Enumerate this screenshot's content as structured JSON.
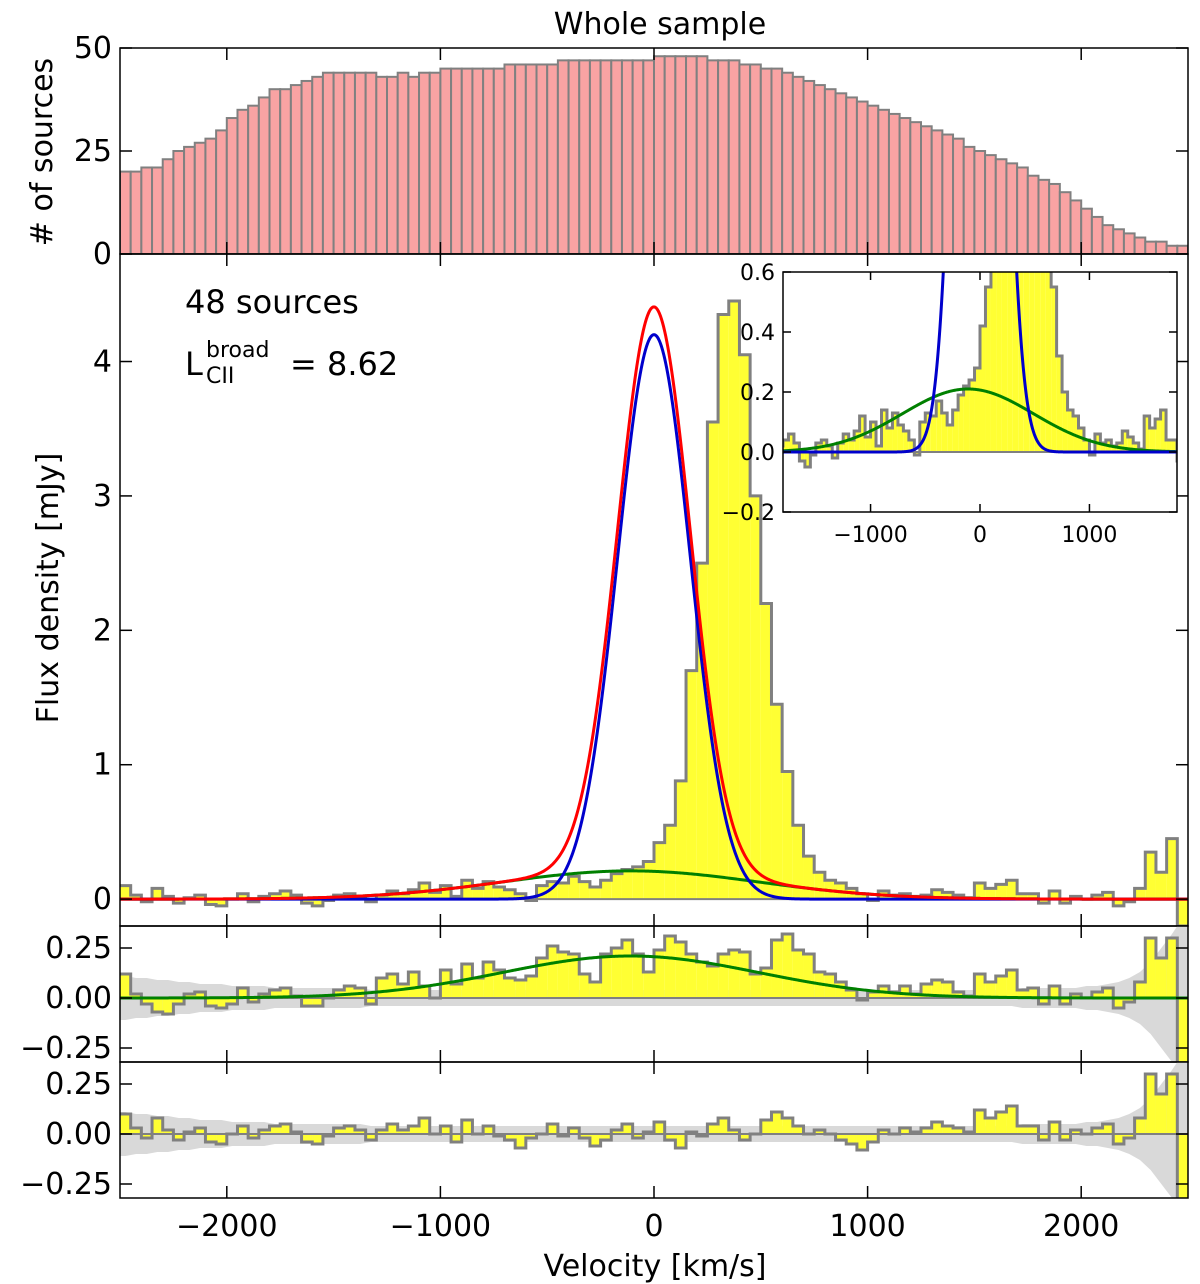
{
  "chart_data": {
    "type": "multi-panel spectrum (histogram + step spectra)",
    "title": "Whole sample",
    "xlabel": "Velocity [km/s]",
    "xlim": [
      -2500,
      2500
    ],
    "xticks": [
      -2000,
      -1000,
      0,
      1000,
      2000
    ],
    "xtick_labels": [
      "−2000",
      "−1000",
      "0",
      "1000",
      "2000"
    ],
    "colors": {
      "histogram": "#f9a3a3",
      "step": "#808080",
      "fill": "#ffff33",
      "band": "#d9d9d9",
      "total_fit": "#ff0000",
      "narrow_fit": "#0000cc",
      "broad_fit": "#008000"
    },
    "panels": {
      "histogram": {
        "ylabel": "# of sources",
        "ylim": [
          0,
          50
        ],
        "yticks": [
          0,
          25,
          50
        ],
        "ytick_labels": [
          "0",
          "25",
          "50"
        ],
        "bin_width_kms": 50,
        "bin_start_kms": -2500,
        "counts": [
          20,
          20,
          21,
          21,
          23,
          25,
          26,
          27,
          28,
          30,
          33,
          35,
          36,
          38,
          40,
          40,
          41,
          42,
          43,
          44,
          44,
          44,
          44,
          44,
          43,
          43,
          44,
          43,
          44,
          44,
          45,
          45,
          45,
          45,
          45,
          45,
          46,
          46,
          46,
          46,
          46,
          47,
          47,
          47,
          47,
          47,
          47,
          47,
          47,
          47,
          48,
          48,
          48,
          48,
          48,
          47,
          47,
          47,
          46,
          46,
          45,
          45,
          44,
          43,
          42,
          41,
          40,
          39,
          38,
          37,
          36,
          35,
          34,
          33,
          32,
          31,
          30,
          29,
          28,
          26,
          25,
          24,
          23,
          22,
          21,
          19,
          18,
          17,
          15,
          13,
          11,
          9,
          7,
          6,
          5,
          4,
          3,
          3,
          2,
          2
        ]
      },
      "spectrum": {
        "ylabel": "Flux density [mJy]",
        "ylim": [
          -0.2,
          4.8
        ],
        "yticks": [
          0,
          1,
          2,
          3,
          4
        ],
        "ytick_labels": [
          "0",
          "1",
          "2",
          "3",
          "4"
        ],
        "annotation_sources": "48  sources",
        "annotation_lum_main": "L",
        "annotation_lum_sup": "broad",
        "annotation_lum_sub": "CII",
        "annotation_lum_value": "=  8.62",
        "bin_width_kms": 50,
        "bin_start_kms": -2500,
        "flux": [
          0.1,
          0.03,
          -0.02,
          0.08,
          0.02,
          -0.03,
          0.01,
          0.03,
          -0.04,
          -0.05,
          0.0,
          0.04,
          -0.02,
          0.02,
          0.04,
          0.06,
          0.03,
          -0.03,
          -0.05,
          -0.01,
          0.03,
          0.04,
          0.02,
          -0.02,
          0.03,
          0.06,
          0.04,
          0.07,
          0.12,
          0.05,
          0.1,
          0.02,
          0.14,
          0.08,
          0.13,
          0.09,
          0.07,
          0.04,
          -0.01,
          0.1,
          0.13,
          0.12,
          0.17,
          0.13,
          0.09,
          0.14,
          0.19,
          0.22,
          0.24,
          0.28,
          0.42,
          0.55,
          0.88,
          1.7,
          2.5,
          3.55,
          4.35,
          4.45,
          4.05,
          3.0,
          2.2,
          1.45,
          0.95,
          0.55,
          0.32,
          0.2,
          0.14,
          0.12,
          0.08,
          0.04,
          -0.01,
          0.06,
          0.03,
          0.04,
          0.02,
          0.03,
          0.07,
          0.05,
          0.03,
          0.01,
          0.12,
          0.08,
          0.11,
          0.14,
          0.04,
          0.04,
          -0.03,
          0.06,
          -0.03,
          0.02,
          0.0,
          0.03,
          0.05,
          -0.05,
          -0.02,
          0.08,
          0.35,
          0.2,
          0.45,
          -0.2
        ],
        "fit": {
          "narrow": {
            "amp": 4.2,
            "center": 0,
            "sigma": 170
          },
          "broad": {
            "amp": 0.21,
            "center": -110,
            "sigma": 600
          }
        }
      },
      "inset": {
        "xlim": [
          -1800,
          1800
        ],
        "ylim": [
          -0.2,
          0.6
        ],
        "xticks": [
          -1000,
          0,
          1000
        ],
        "xtick_labels": [
          "−1000",
          "0",
          "1000"
        ],
        "yticks": [
          -0.2,
          0.0,
          0.2,
          0.4,
          0.6
        ],
        "ytick_labels": [
          "−0.2",
          "0.0",
          "0.2",
          "0.4",
          "0.6"
        ]
      },
      "residual_broad": {
        "ylim": [
          -0.32,
          0.36
        ],
        "yticks": [
          -0.25,
          0.0,
          0.25
        ],
        "ytick_labels": [
          "−0.25",
          "0.00",
          "0.25"
        ],
        "values": [
          0.12,
          0.02,
          -0.03,
          -0.07,
          -0.08,
          -0.03,
          0.02,
          0.03,
          -0.04,
          -0.05,
          -0.03,
          0.05,
          -0.02,
          0.02,
          0.04,
          0.05,
          0.01,
          -0.04,
          -0.04,
          0.0,
          0.04,
          0.06,
          0.05,
          -0.03,
          0.1,
          0.12,
          0.07,
          0.13,
          0.06,
          0.0,
          0.14,
          0.07,
          0.17,
          0.1,
          0.18,
          0.14,
          0.1,
          0.09,
          0.11,
          0.2,
          0.26,
          0.23,
          0.22,
          0.12,
          0.08,
          0.22,
          0.25,
          0.29,
          0.22,
          0.13,
          0.24,
          0.31,
          0.28,
          0.22,
          0.18,
          0.16,
          0.22,
          0.24,
          0.23,
          0.12,
          0.15,
          0.29,
          0.32,
          0.24,
          0.22,
          0.13,
          0.12,
          0.08,
          0.04,
          -0.01,
          0.03,
          0.06,
          0.03,
          0.06,
          0.02,
          0.07,
          0.09,
          0.08,
          0.03,
          0.01,
          0.12,
          0.08,
          0.11,
          0.14,
          0.04,
          0.05,
          -0.03,
          0.06,
          -0.03,
          0.02,
          0.0,
          0.03,
          0.05,
          -0.05,
          -0.02,
          0.08,
          0.3,
          0.2,
          0.3,
          -0.35
        ],
        "noise": [
          0.11,
          0.1,
          0.1,
          0.09,
          0.09,
          0.08,
          0.08,
          0.07,
          0.07,
          0.07,
          0.06,
          0.06,
          0.06,
          0.06,
          0.05,
          0.05,
          0.05,
          0.05,
          0.05,
          0.05,
          0.05,
          0.05,
          0.05,
          0.04,
          0.04,
          0.04,
          0.04,
          0.04,
          0.04,
          0.04,
          0.04,
          0.04,
          0.04,
          0.04,
          0.04,
          0.04,
          0.04,
          0.04,
          0.04,
          0.04,
          0.04,
          0.04,
          0.04,
          0.04,
          0.04,
          0.04,
          0.04,
          0.04,
          0.04,
          0.04,
          0.04,
          0.04,
          0.04,
          0.04,
          0.04,
          0.04,
          0.04,
          0.04,
          0.04,
          0.04,
          0.04,
          0.04,
          0.04,
          0.04,
          0.04,
          0.04,
          0.04,
          0.04,
          0.04,
          0.04,
          0.04,
          0.04,
          0.04,
          0.04,
          0.04,
          0.04,
          0.04,
          0.04,
          0.04,
          0.04,
          0.04,
          0.04,
          0.04,
          0.04,
          0.05,
          0.05,
          0.05,
          0.05,
          0.05,
          0.05,
          0.06,
          0.06,
          0.07,
          0.08,
          0.1,
          0.13,
          0.18,
          0.25,
          0.32,
          0.4
        ]
      },
      "residual_total": {
        "ylim": [
          -0.32,
          0.36
        ],
        "yticks": [
          -0.25,
          0.0,
          0.25
        ],
        "ytick_labels": [
          "−0.25",
          "0.00",
          "0.25"
        ],
        "values": [
          0.1,
          0.03,
          -0.02,
          0.08,
          0.02,
          -0.03,
          0.01,
          0.03,
          -0.04,
          -0.05,
          0.0,
          0.04,
          -0.02,
          0.02,
          0.04,
          0.05,
          0.01,
          -0.04,
          -0.05,
          -0.01,
          0.03,
          0.04,
          0.02,
          -0.03,
          0.02,
          0.05,
          0.02,
          0.04,
          0.08,
          0.0,
          0.04,
          -0.04,
          0.07,
          0.0,
          0.04,
          -0.01,
          -0.03,
          -0.07,
          -0.02,
          0.0,
          0.05,
          -0.01,
          0.03,
          -0.02,
          -0.06,
          -0.03,
          0.02,
          0.05,
          -0.02,
          0.01,
          0.06,
          -0.03,
          -0.07,
          0.01,
          -0.01,
          0.05,
          0.08,
          0.02,
          -0.03,
          0.0,
          0.07,
          0.11,
          0.08,
          0.04,
          0.0,
          0.02,
          0.0,
          -0.03,
          -0.05,
          -0.08,
          -0.04,
          0.02,
          0.0,
          0.03,
          0.01,
          0.03,
          0.06,
          0.04,
          0.03,
          0.01,
          0.12,
          0.08,
          0.11,
          0.14,
          0.04,
          0.04,
          -0.03,
          0.06,
          -0.03,
          0.02,
          0.0,
          0.03,
          0.05,
          -0.05,
          -0.02,
          0.08,
          0.3,
          0.2,
          0.3,
          -0.35
        ]
      }
    }
  }
}
